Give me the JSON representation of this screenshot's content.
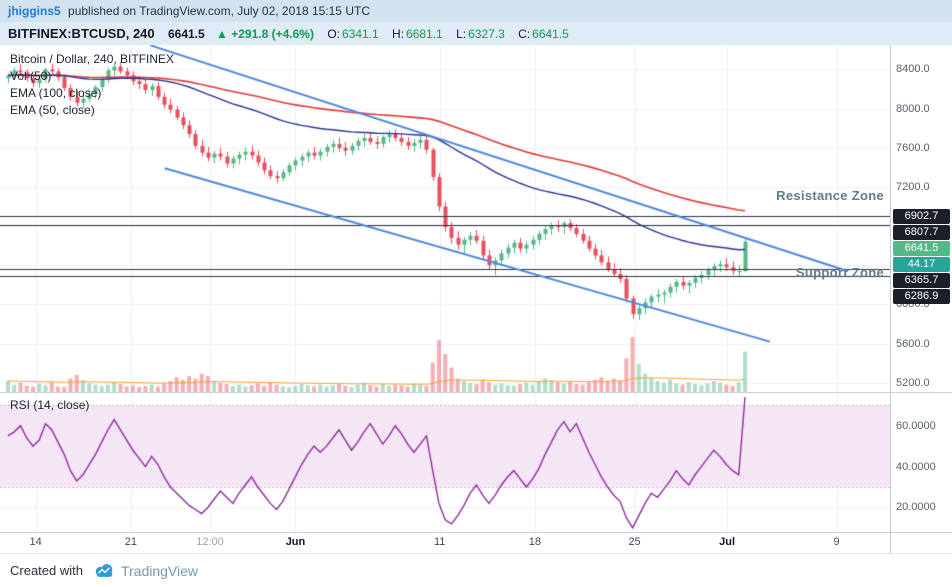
{
  "topbar": {
    "user": "jhiggins5",
    "published": "published on TradingView.com, July 02, 2018 15:15 UTC"
  },
  "symbol_bar": {
    "symbol": "BITFINEX:BTCUSD, 240",
    "last": "6641.5",
    "change": "▲ +291.8 (+4.6%)",
    "o_label": "O:",
    "o": "6341.1",
    "h_label": "H:",
    "h": "6681.1",
    "l_label": "L:",
    "l": "6327.3",
    "c_label": "C:",
    "c": "6641.5"
  },
  "legend": {
    "main": [
      "Bitcoin / Dollar, 240, BITFINEX",
      "Vol (50)",
      "EMA (100, close)",
      "EMA (50, close)"
    ],
    "rsi": "RSI (14, close)"
  },
  "annotations": {
    "resistance": "Resistance Zone",
    "support": "Support Zone"
  },
  "price_axis": {
    "scale": [
      {
        "label": "8400.0",
        "price": 8400
      },
      {
        "label": "8000.0",
        "price": 8000
      },
      {
        "label": "7600.0",
        "price": 7600
      },
      {
        "label": "7200.0",
        "price": 7200
      },
      {
        "label": "6000.0",
        "price": 6000
      },
      {
        "label": "5600.0",
        "price": 5600
      },
      {
        "label": "5200.0",
        "price": 5200
      }
    ],
    "badges": [
      {
        "label": "6902.7",
        "anchor": 6902.7,
        "style": "dark"
      },
      {
        "label": "6807.7",
        "anchor": 6807.7,
        "style": "dark"
      },
      {
        "label": "6641.5",
        "anchor": 6641.5,
        "style": "up"
      },
      {
        "label": "44.17",
        "anchor": 6520,
        "style": "teal"
      },
      {
        "label": "6365.7",
        "anchor": 6365.7,
        "style": "dark"
      },
      {
        "label": "6286.9",
        "anchor": 6286.9,
        "style": "dark"
      }
    ]
  },
  "rsi_axis": [
    {
      "label": "60.0000",
      "value": 60
    },
    {
      "label": "40.0000",
      "value": 40
    },
    {
      "label": "20.0000",
      "value": 20
    }
  ],
  "time_axis": [
    {
      "label": "14",
      "f": 0.04,
      "style": "day"
    },
    {
      "label": "21",
      "f": 0.147,
      "style": "day"
    },
    {
      "label": "12:00",
      "f": 0.236,
      "style": "minor"
    },
    {
      "label": "Jun",
      "f": 0.332,
      "style": "month"
    },
    {
      "label": "11",
      "f": 0.494,
      "style": "day"
    },
    {
      "label": "18",
      "f": 0.601,
      "style": "day"
    },
    {
      "label": "25",
      "f": 0.713,
      "style": "day"
    },
    {
      "label": "Jul",
      "f": 0.817,
      "style": "month"
    },
    {
      "label": "9",
      "f": 0.94,
      "style": "day"
    }
  ],
  "footer": {
    "created": "Created with",
    "brand": "TradingView"
  },
  "colors": {
    "up": "#53b987",
    "down": "#eb4d5c",
    "up_vol": "rgba(83,185,135,0.45)",
    "down_vol": "rgba(235,77,92,0.45)",
    "ema50": "#283593",
    "ema100": "#e53935",
    "vol_ma": "#f5a43c",
    "trendline": "#4e87e0",
    "level": "#30353f",
    "rsi": "#8f2d9e",
    "rsi_band": "#f5e6f6",
    "rsi_band_edge": "#d9aade",
    "badge_dark": "#1a1f2a",
    "badge_up": "#53b987",
    "badge_teal": "#26a69a",
    "accent_green": "#0b9c54",
    "link_blue": "#1c7cd6",
    "zone_label": "#607d8b",
    "brand_text": "#7498ad",
    "brand_blue": "#2e9cdb"
  },
  "chart_data": {
    "type": "candlestick",
    "title": "Bitcoin / Dollar, 240, BITFINEX",
    "symbol": "BITFINEX:BTCUSD",
    "interval": "240",
    "last_bar": {
      "o": 6341.1,
      "h": 6681.1,
      "l": 6327.3,
      "c": 6641.5,
      "change": 291.8,
      "change_pct": 4.6
    },
    "price_range": [
      5105,
      8650
    ],
    "grid": true,
    "time_labels": [
      "14",
      "21",
      "12:00",
      "Jun",
      "11",
      "18",
      "25",
      "Jul",
      "9"
    ],
    "levels": [
      6902.7,
      6807.7,
      6365.7,
      6286.9
    ],
    "trendlines": [
      {
        "x1": 0.169,
        "p1": 8646,
        "x2": 0.953,
        "p2": 6338
      },
      {
        "x1": 0.185,
        "p1": 7390,
        "x2": 0.865,
        "p2": 5620
      }
    ],
    "overlays": {
      "ema_fast": {
        "label": "EMA (50, close)",
        "period": 50
      },
      "ema_slow": {
        "label": "EMA (100, close)",
        "period": 100
      },
      "vol_ma": {
        "label": "Vol (50)",
        "period": 50
      }
    },
    "candles": [
      [
        8310,
        8360,
        8260,
        8340,
        18
      ],
      [
        8340,
        8420,
        8300,
        8390,
        12
      ],
      [
        8390,
        8450,
        8340,
        8370,
        15
      ],
      [
        8370,
        8400,
        8280,
        8310,
        10
      ],
      [
        8310,
        8350,
        8220,
        8260,
        9
      ],
      [
        8260,
        8330,
        8210,
        8300,
        14
      ],
      [
        8300,
        8420,
        8270,
        8400,
        11
      ],
      [
        8400,
        8460,
        8350,
        8380,
        16
      ],
      [
        8380,
        8410,
        8280,
        8320,
        9
      ],
      [
        8320,
        8350,
        8180,
        8210,
        8
      ],
      [
        8210,
        8250,
        8080,
        8120,
        22
      ],
      [
        8120,
        8180,
        8020,
        8060,
        28
      ],
      [
        8060,
        8140,
        8010,
        8100,
        19
      ],
      [
        8100,
        8190,
        8060,
        8150,
        14
      ],
      [
        8150,
        8240,
        8100,
        8220,
        12
      ],
      [
        8220,
        8330,
        8170,
        8300,
        10
      ],
      [
        8300,
        8420,
        8260,
        8390,
        12
      ],
      [
        8390,
        8460,
        8330,
        8430,
        16
      ],
      [
        8430,
        8480,
        8350,
        8380,
        13
      ],
      [
        8380,
        8420,
        8300,
        8340,
        9
      ],
      [
        8340,
        8380,
        8240,
        8280,
        11
      ],
      [
        8280,
        8330,
        8200,
        8250,
        8
      ],
      [
        8250,
        8300,
        8150,
        8190,
        10
      ],
      [
        8190,
        8260,
        8130,
        8230,
        12
      ],
      [
        8230,
        8270,
        8090,
        8120,
        9
      ],
      [
        8120,
        8160,
        8000,
        8040,
        14
      ],
      [
        8040,
        8100,
        7950,
        7990,
        18
      ],
      [
        7990,
        8030,
        7880,
        7910,
        24
      ],
      [
        7910,
        7960,
        7790,
        7830,
        20
      ],
      [
        7830,
        7880,
        7700,
        7740,
        26
      ],
      [
        7740,
        7780,
        7590,
        7620,
        22
      ],
      [
        7620,
        7680,
        7510,
        7550,
        30
      ],
      [
        7550,
        7610,
        7460,
        7500,
        26
      ],
      [
        7500,
        7570,
        7440,
        7540,
        18
      ],
      [
        7540,
        7600,
        7470,
        7510,
        15
      ],
      [
        7510,
        7560,
        7400,
        7440,
        13
      ],
      [
        7440,
        7520,
        7390,
        7490,
        10
      ],
      [
        7490,
        7560,
        7430,
        7530,
        12
      ],
      [
        7530,
        7600,
        7470,
        7560,
        9
      ],
      [
        7560,
        7620,
        7480,
        7520,
        11
      ],
      [
        7520,
        7570,
        7410,
        7450,
        14
      ],
      [
        7450,
        7500,
        7330,
        7370,
        10
      ],
      [
        7370,
        7420,
        7280,
        7310,
        16
      ],
      [
        7310,
        7360,
        7240,
        7290,
        12
      ],
      [
        7290,
        7380,
        7260,
        7350,
        9
      ],
      [
        7350,
        7450,
        7310,
        7420,
        8
      ],
      [
        7420,
        7500,
        7370,
        7470,
        10
      ],
      [
        7470,
        7540,
        7410,
        7510,
        13
      ],
      [
        7510,
        7580,
        7450,
        7550,
        11
      ],
      [
        7550,
        7610,
        7480,
        7520,
        9
      ],
      [
        7520,
        7590,
        7470,
        7560,
        12
      ],
      [
        7560,
        7640,
        7510,
        7610,
        9
      ],
      [
        7610,
        7680,
        7550,
        7640,
        11
      ],
      [
        7640,
        7700,
        7560,
        7600,
        14
      ],
      [
        7600,
        7660,
        7520,
        7570,
        10
      ],
      [
        7570,
        7650,
        7530,
        7620,
        8
      ],
      [
        7620,
        7700,
        7570,
        7670,
        12
      ],
      [
        7670,
        7740,
        7610,
        7700,
        15
      ],
      [
        7700,
        7760,
        7630,
        7660,
        11
      ],
      [
        7660,
        7720,
        7590,
        7640,
        9
      ],
      [
        7640,
        7730,
        7600,
        7710,
        13
      ],
      [
        7710,
        7780,
        7650,
        7740,
        10
      ],
      [
        7740,
        7790,
        7670,
        7700,
        12
      ],
      [
        7700,
        7750,
        7620,
        7660,
        11
      ],
      [
        7660,
        7710,
        7580,
        7620,
        9
      ],
      [
        7620,
        7690,
        7560,
        7650,
        14
      ],
      [
        7650,
        7720,
        7590,
        7680,
        12
      ],
      [
        7680,
        7730,
        7540,
        7580,
        10
      ],
      [
        7580,
        7600,
        7260,
        7300,
        48
      ],
      [
        7300,
        7340,
        6950,
        7000,
        85
      ],
      [
        7000,
        7050,
        6740,
        6790,
        62
      ],
      [
        6790,
        6840,
        6620,
        6680,
        40
      ],
      [
        6680,
        6750,
        6560,
        6610,
        22
      ],
      [
        6610,
        6690,
        6510,
        6660,
        18
      ],
      [
        6660,
        6740,
        6600,
        6700,
        15
      ],
      [
        6700,
        6760,
        6620,
        6650,
        13
      ],
      [
        6650,
        6700,
        6460,
        6500,
        20
      ],
      [
        6500,
        6560,
        6360,
        6400,
        16
      ],
      [
        6400,
        6480,
        6300,
        6450,
        12
      ],
      [
        6450,
        6560,
        6400,
        6520,
        14
      ],
      [
        6520,
        6620,
        6470,
        6580,
        11
      ],
      [
        6580,
        6660,
        6520,
        6630,
        10
      ],
      [
        6630,
        6680,
        6530,
        6570,
        13
      ],
      [
        6570,
        6650,
        6520,
        6610,
        15
      ],
      [
        6610,
        6700,
        6560,
        6660,
        12
      ],
      [
        6660,
        6750,
        6610,
        6720,
        18
      ],
      [
        6720,
        6800,
        6660,
        6770,
        22
      ],
      [
        6770,
        6840,
        6710,
        6810,
        20
      ],
      [
        6810,
        6860,
        6740,
        6790,
        16
      ],
      [
        6790,
        6850,
        6720,
        6830,
        14
      ],
      [
        6830,
        6870,
        6750,
        6780,
        17
      ],
      [
        6780,
        6820,
        6690,
        6720,
        13
      ],
      [
        6720,
        6770,
        6620,
        6650,
        12
      ],
      [
        6650,
        6700,
        6540,
        6570,
        16
      ],
      [
        6570,
        6620,
        6460,
        6500,
        20
      ],
      [
        6500,
        6560,
        6400,
        6430,
        24
      ],
      [
        6430,
        6490,
        6330,
        6360,
        18
      ],
      [
        6360,
        6420,
        6280,
        6310,
        22
      ],
      [
        6310,
        6370,
        6220,
        6260,
        19
      ],
      [
        6260,
        6300,
        6020,
        6060,
        55
      ],
      [
        6060,
        6090,
        5850,
        5900,
        90
      ],
      [
        5900,
        6000,
        5840,
        5960,
        46
      ],
      [
        5960,
        6060,
        5900,
        6020,
        30
      ],
      [
        6020,
        6100,
        5960,
        6080,
        24
      ],
      [
        6080,
        6160,
        6020,
        6100,
        18
      ],
      [
        6100,
        6150,
        6010,
        6120,
        15
      ],
      [
        6120,
        6210,
        6070,
        6180,
        20
      ],
      [
        6180,
        6260,
        6120,
        6230,
        14
      ],
      [
        6230,
        6290,
        6150,
        6190,
        12
      ],
      [
        6190,
        6250,
        6110,
        6220,
        16
      ],
      [
        6220,
        6300,
        6170,
        6270,
        13
      ],
      [
        6270,
        6340,
        6210,
        6300,
        11
      ],
      [
        6300,
        6380,
        6250,
        6350,
        14
      ],
      [
        6350,
        6420,
        6290,
        6390,
        18
      ],
      [
        6390,
        6450,
        6330,
        6410,
        15
      ],
      [
        6410,
        6470,
        6340,
        6380,
        12
      ],
      [
        6380,
        6440,
        6300,
        6340,
        10
      ],
      [
        6340,
        6400,
        6280,
        6341,
        16
      ],
      [
        6341.1,
        6681.1,
        6327.3,
        6641.5,
        66
      ]
    ],
    "rsi": {
      "label": "RSI (14, close)",
      "period": 14,
      "band": [
        30,
        70
      ],
      "range": [
        8,
        76
      ],
      "values": [
        55,
        57,
        60,
        54,
        50,
        53,
        61,
        58,
        52,
        46,
        38,
        33,
        36,
        41,
        46,
        52,
        58,
        63,
        58,
        53,
        48,
        44,
        40,
        45,
        41,
        35,
        30,
        27,
        24,
        21,
        19,
        17,
        20,
        24,
        28,
        25,
        22,
        27,
        31,
        35,
        30,
        26,
        22,
        19,
        23,
        29,
        35,
        41,
        46,
        50,
        47,
        50,
        54,
        58,
        53,
        48,
        52,
        57,
        61,
        56,
        51,
        55,
        60,
        56,
        51,
        47,
        51,
        55,
        38,
        22,
        14,
        12,
        16,
        21,
        27,
        31,
        26,
        22,
        26,
        31,
        35,
        38,
        34,
        30,
        34,
        39,
        46,
        52,
        58,
        62,
        57,
        61,
        54,
        47,
        41,
        35,
        30,
        26,
        23,
        15,
        10,
        16,
        22,
        27,
        25,
        29,
        33,
        38,
        34,
        31,
        36,
        40,
        44,
        48,
        45,
        41,
        38,
        36,
        74
      ]
    }
  }
}
